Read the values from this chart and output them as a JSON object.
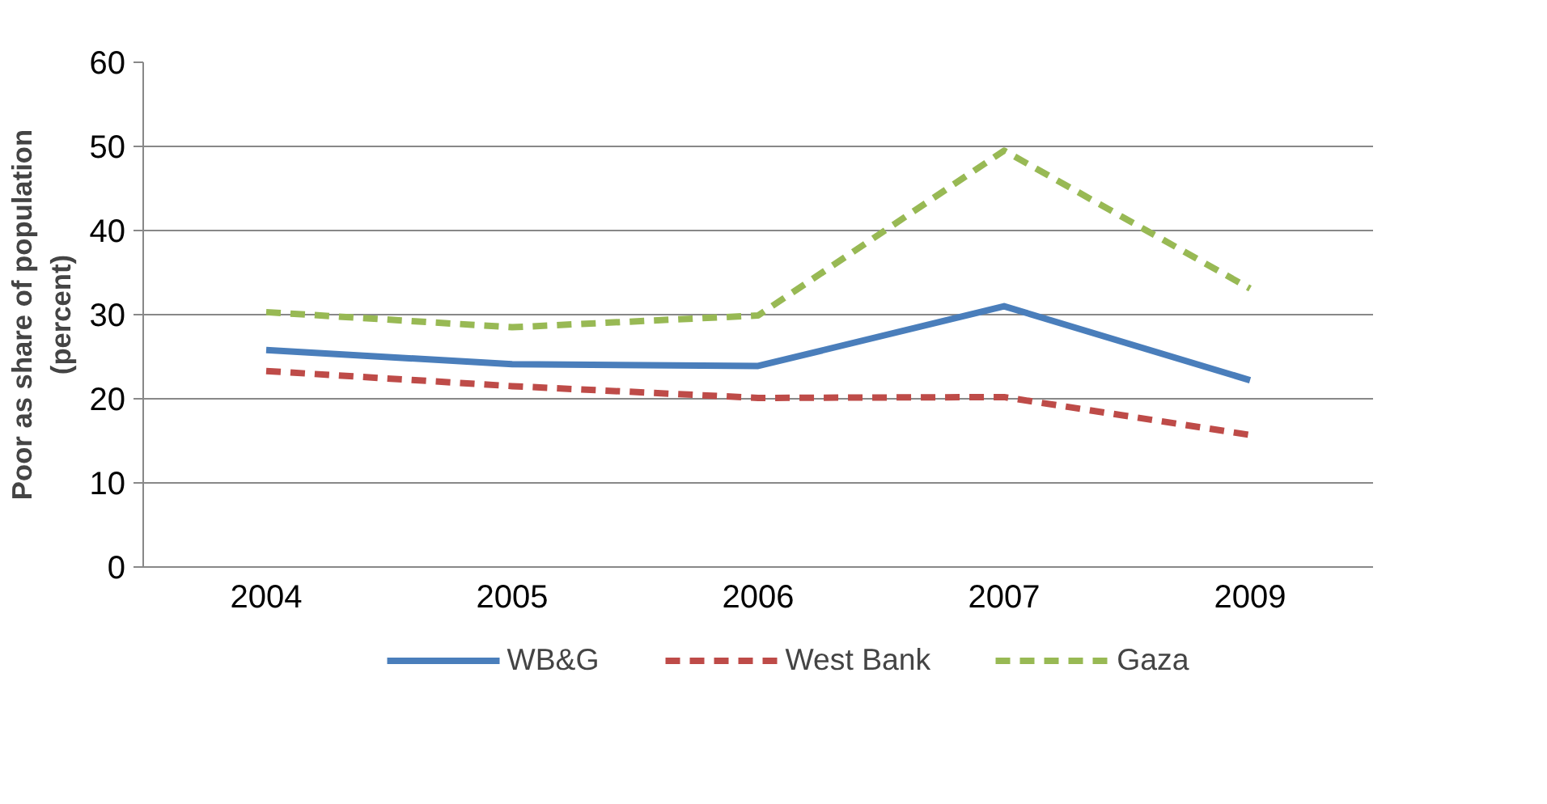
{
  "chart_data": {
    "type": "line",
    "ylabel": "Poor as share of population (percent)",
    "categories": [
      "2004",
      "2005",
      "2006",
      "2007",
      "2009"
    ],
    "ylim": [
      0,
      60
    ],
    "yticks": [
      0,
      10,
      20,
      30,
      40,
      50,
      60
    ],
    "grid": "y",
    "legend": "bottom",
    "marker": "none",
    "series": [
      {
        "name": "WB&G",
        "color": "#4a7ebb",
        "line_style": "solid",
        "values": [
          25.8,
          24.1,
          23.9,
          31.0,
          22.2
        ]
      },
      {
        "name": "West Bank",
        "color": "#be4b48",
        "line_style": "dashed",
        "values": [
          23.3,
          21.5,
          20.1,
          20.2,
          15.7
        ]
      },
      {
        "name": "Gaza",
        "color": "#98b954",
        "line_style": "dashed",
        "values": [
          30.3,
          28.5,
          29.9,
          49.5,
          33.1
        ]
      }
    ]
  }
}
